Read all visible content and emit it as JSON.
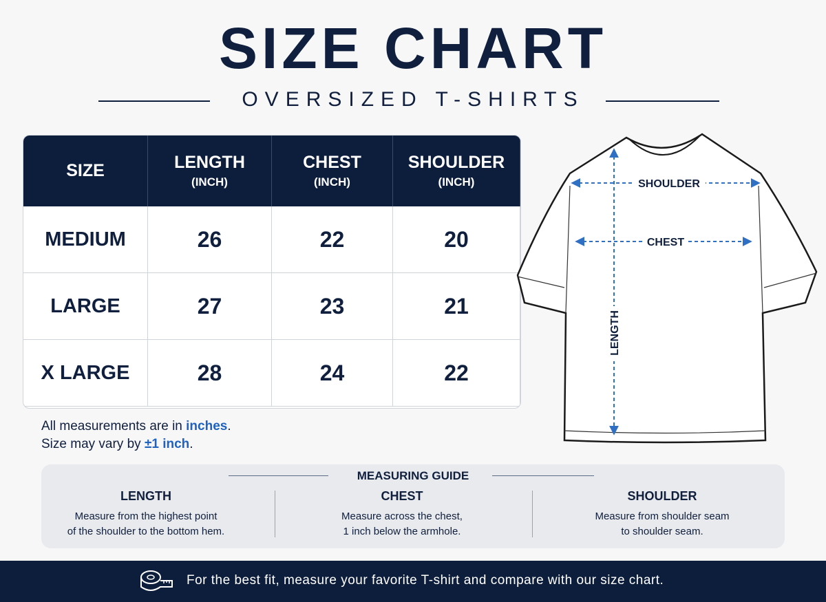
{
  "header": {
    "title": "SIZE CHART",
    "subtitle": "OVERSIZED T-SHIRTS"
  },
  "table": {
    "columns": [
      {
        "name": "SIZE"
      },
      {
        "name": "LENGTH",
        "unit": "(INCH)"
      },
      {
        "name": "CHEST",
        "unit": "(INCH)"
      },
      {
        "name": "SHOULDER",
        "unit": "(INCH)"
      }
    ],
    "rows": [
      [
        "MEDIUM",
        26,
        22,
        20
      ],
      [
        "LARGE",
        27,
        23,
        21
      ],
      [
        "X LARGE",
        28,
        24,
        22
      ]
    ]
  },
  "notes": [
    [
      "All measurements are in ",
      "inches",
      "."
    ],
    [
      "Size may vary by ",
      "±1 inch",
      "."
    ]
  ],
  "diagram": {
    "labels": [
      "SHOULDER",
      "CHEST",
      "LENGTH"
    ]
  },
  "guide": {
    "title": "MEASURING GUIDE",
    "items": [
      {
        "title": "LENGTH",
        "lines": [
          "Measure from the highest point",
          "of the shoulder to the bottom hem."
        ]
      },
      {
        "title": "CHEST",
        "lines": [
          "Measure across the chest,",
          "1 inch below the armhole."
        ]
      },
      {
        "title": "SHOULDER",
        "lines": [
          "Measure from shoulder seam",
          "to shoulder seam."
        ]
      }
    ]
  },
  "footer": {
    "text": "For the best fit, measure your favorite T-shirt and compare with our size chart."
  }
}
